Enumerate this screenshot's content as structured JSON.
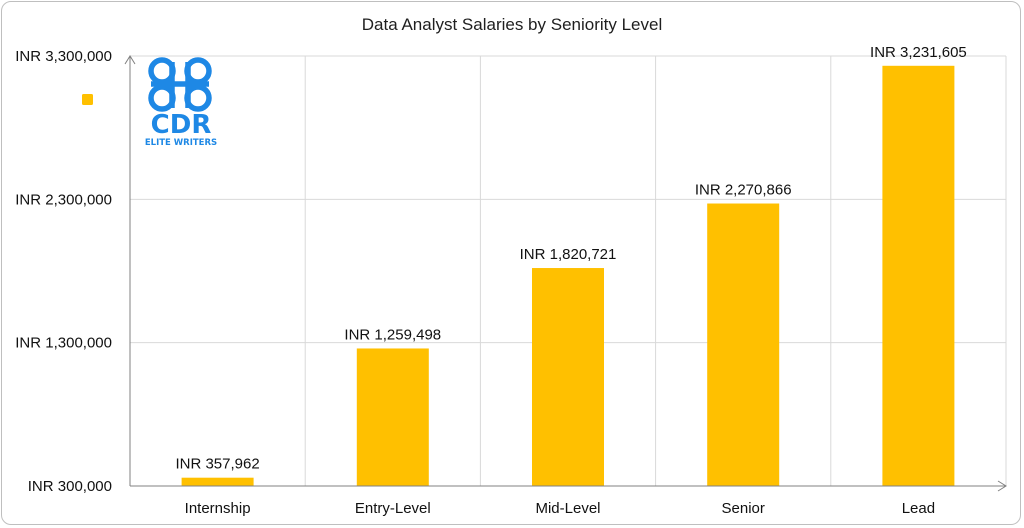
{
  "chart_data": {
    "type": "bar",
    "title": "Data Analyst Salaries by Seniority Level",
    "xlabel": "",
    "ylabel": "",
    "categories": [
      "Internship",
      "Entry-Level",
      "Mid-Level",
      "Senior",
      "Lead"
    ],
    "values": [
      357962,
      1259498,
      1820721,
      2270866,
      3231605
    ],
    "data_labels": [
      "INR 357,962",
      "INR 1,259,498",
      "INR 1,820,721",
      "INR 2,270,866",
      "INR 3,231,605"
    ],
    "y_ticks": [
      300000,
      1300000,
      2300000,
      3300000
    ],
    "y_tick_labels": [
      "INR 300,000",
      "INR 1,300,000",
      "INR 2,300,000",
      "INR 3,300,000"
    ],
    "ylim": [
      300000,
      3300000
    ],
    "grid": true,
    "legend": "none",
    "bar_color": "#FFC000"
  },
  "watermark": {
    "logo_text": "CDR",
    "logo_subtext": "ELITE WRITERS",
    "logo_color": "#1e88e5"
  }
}
